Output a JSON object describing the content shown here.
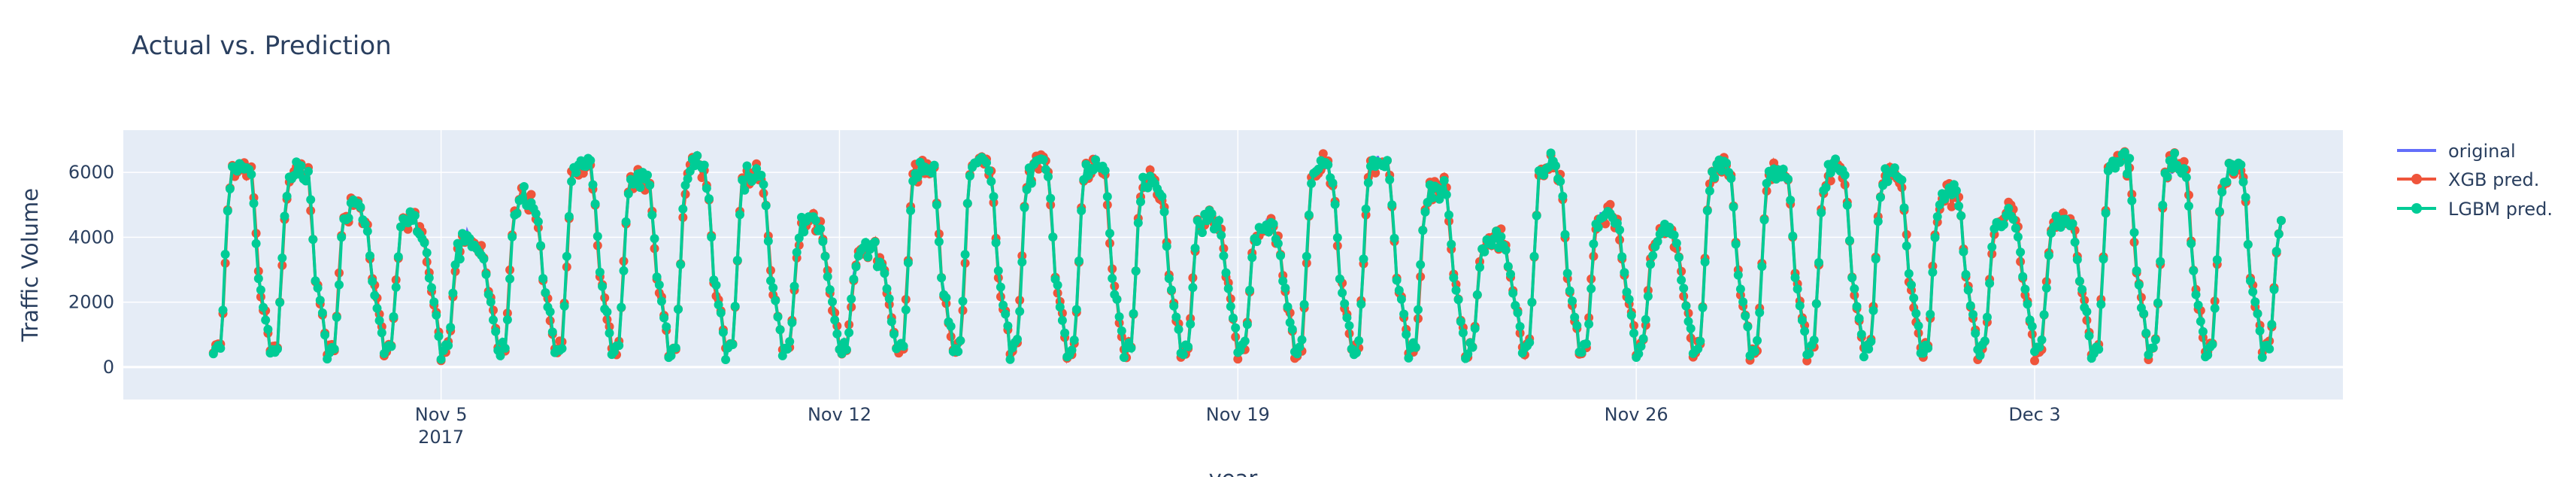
{
  "chart_data": {
    "type": "line",
    "title": "Actual vs. Prediction",
    "xlabel": "year",
    "ylabel": "Traffic Volume",
    "x_range": [
      "2017-10-30T10:00",
      "2017-12-08T10:00"
    ],
    "ylim": [
      -1000,
      7300
    ],
    "y_ticks": [
      0,
      2000,
      4000,
      6000
    ],
    "x_ticks": [
      {
        "date": "2017-11-05",
        "label": "Nov 5",
        "sublabel": "2017"
      },
      {
        "date": "2017-11-12",
        "label": "Nov 12",
        "sublabel": ""
      },
      {
        "date": "2017-11-19",
        "label": "Nov 19",
        "sublabel": ""
      },
      {
        "date": "2017-11-26",
        "label": "Nov 26",
        "sublabel": ""
      },
      {
        "date": "2017-12-03",
        "label": "Dec 3",
        "sublabel": ""
      }
    ],
    "grid": true,
    "legend_position": "right",
    "start_time": "2017-11-01T00:00",
    "end_time": "2017-12-07T08:00",
    "series": [
      {
        "name": "original",
        "color": "#636efa",
        "mode": "lines"
      },
      {
        "name": "XGB pred.",
        "color": "#ef553b",
        "mode": "lines+markers"
      },
      {
        "name": "LGBM pred.",
        "color": "#00cc96",
        "mode": "lines+markers"
      }
    ],
    "daily_peak": [
      {
        "date": "2017-11-01",
        "value": 6200
      },
      {
        "date": "2017-11-02",
        "value": 6100
      },
      {
        "date": "2017-11-03",
        "value": 5000
      },
      {
        "date": "2017-11-04",
        "value": 4600
      },
      {
        "date": "2017-11-05",
        "value": 4000
      },
      {
        "date": "2017-11-06",
        "value": 5200
      },
      {
        "date": "2017-11-07",
        "value": 6200
      },
      {
        "date": "2017-11-08",
        "value": 5800
      },
      {
        "date": "2017-11-09",
        "value": 6200
      },
      {
        "date": "2017-11-10",
        "value": 6000
      },
      {
        "date": "2017-11-11",
        "value": 4600
      },
      {
        "date": "2017-11-12",
        "value": 3700
      },
      {
        "date": "2017-11-13",
        "value": 6300
      },
      {
        "date": "2017-11-14",
        "value": 6400
      },
      {
        "date": "2017-11-15",
        "value": 6200
      },
      {
        "date": "2017-11-16",
        "value": 6400
      },
      {
        "date": "2017-11-17",
        "value": 5800
      },
      {
        "date": "2017-11-18",
        "value": 4700
      },
      {
        "date": "2017-11-19",
        "value": 4400
      },
      {
        "date": "2017-11-20",
        "value": 6200
      },
      {
        "date": "2017-11-21",
        "value": 6300
      },
      {
        "date": "2017-11-22",
        "value": 5600
      },
      {
        "date": "2017-11-23",
        "value": 4100
      },
      {
        "date": "2017-11-24",
        "value": 6300
      },
      {
        "date": "2017-11-25",
        "value": 4700
      },
      {
        "date": "2017-11-26",
        "value": 4200
      },
      {
        "date": "2017-11-27",
        "value": 6200
      },
      {
        "date": "2017-11-28",
        "value": 6100
      },
      {
        "date": "2017-11-29",
        "value": 6200
      },
      {
        "date": "2017-11-30",
        "value": 6000
      },
      {
        "date": "2017-12-01",
        "value": 5400
      },
      {
        "date": "2017-12-02",
        "value": 4800
      },
      {
        "date": "2017-12-03",
        "value": 4600
      },
      {
        "date": "2017-12-04",
        "value": 6400
      },
      {
        "date": "2017-12-05",
        "value": 6300
      },
      {
        "date": "2017-12-06",
        "value": 6200
      },
      {
        "date": "2017-12-07",
        "value": 4600
      }
    ],
    "night_min": 400
  }
}
